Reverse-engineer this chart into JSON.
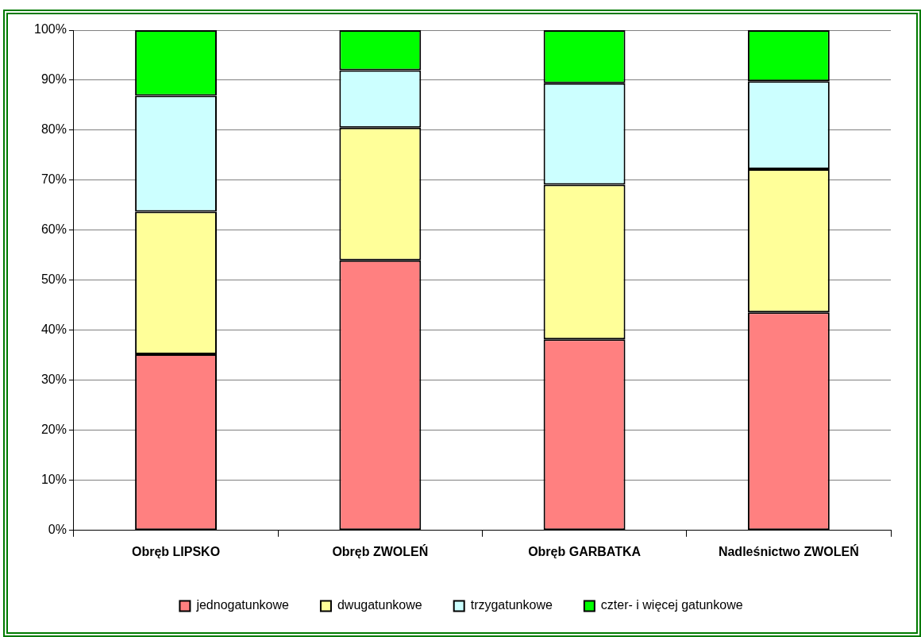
{
  "chart_data": {
    "type": "bar",
    "stacked": true,
    "categories": [
      "Obręb LIPSKO",
      "Obręb ZWOLEŃ",
      "Obręb GARBATKA",
      "Nadleśnictwo ZWOLEŃ"
    ],
    "series": [
      {
        "name": "jednogatunkowe",
        "color": "#ff8080",
        "values": [
          35.2,
          54.0,
          38.2,
          43.6
        ]
      },
      {
        "name": "dwugatunkowe",
        "color": "#ffff99",
        "values": [
          28.5,
          26.5,
          30.9,
          28.6
        ]
      },
      {
        "name": "trzygatunkowe",
        "color": "#ccffff",
        "values": [
          23.2,
          11.5,
          20.3,
          17.6
        ]
      },
      {
        "name": "czter- i więcej gatunkowe",
        "color": "#00ff00",
        "values": [
          13.1,
          8.0,
          10.6,
          10.2
        ]
      }
    ],
    "ylim": [
      0,
      100
    ],
    "yticks": [
      {
        "value": 0,
        "label": "0%"
      },
      {
        "value": 10,
        "label": "10%"
      },
      {
        "value": 20,
        "label": "20%"
      },
      {
        "value": 30,
        "label": "30%"
      },
      {
        "value": 40,
        "label": "40%"
      },
      {
        "value": 50,
        "label": "50%"
      },
      {
        "value": 60,
        "label": "60%"
      },
      {
        "value": 70,
        "label": "70%"
      },
      {
        "value": 80,
        "label": "80%"
      },
      {
        "value": 90,
        "label": "90%"
      },
      {
        "value": 100,
        "label": "100%"
      }
    ],
    "grid": "y",
    "legend": "bottom"
  }
}
